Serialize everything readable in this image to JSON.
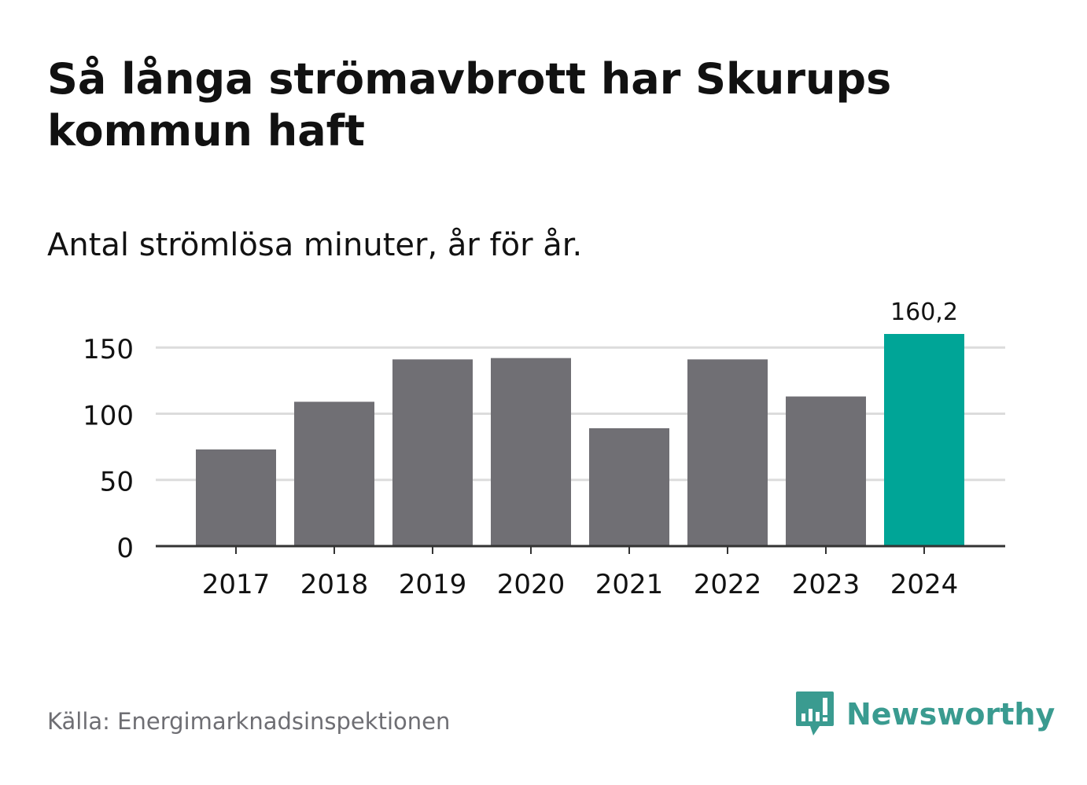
{
  "header": {
    "title": "Så långa strömavbrott har Skurups kommun haft",
    "subtitle": "Antal strömlösa minuter, år för år."
  },
  "footer": {
    "source": "Källa: Energimarknadsinspektionen",
    "brand": "Newsworthy",
    "brand_icon": "bar-chart-speech-bubble-icon",
    "brand_color": "#3a9b90"
  },
  "chart_data": {
    "type": "bar",
    "categories": [
      "2017",
      "2018",
      "2019",
      "2020",
      "2021",
      "2022",
      "2023",
      "2024"
    ],
    "values": [
      73,
      109,
      141,
      142,
      89,
      141,
      113,
      160.2
    ],
    "value_labels": [
      "",
      "",
      "",
      "",
      "",
      "",
      "",
      "160,2"
    ],
    "highlight_index": 7,
    "colors": {
      "bar": "#706f74",
      "highlight": "#00a597",
      "grid": "#dcdcdc",
      "axis": "#333333"
    },
    "yticks": [
      0,
      50,
      100,
      150
    ],
    "ylim": [
      0,
      160.2
    ],
    "grid": true,
    "title": "Så långa strömavbrott har Skurups kommun haft",
    "subtitle": "Antal strömlösa minuter, år för år.",
    "xlabel": "",
    "ylabel": ""
  }
}
